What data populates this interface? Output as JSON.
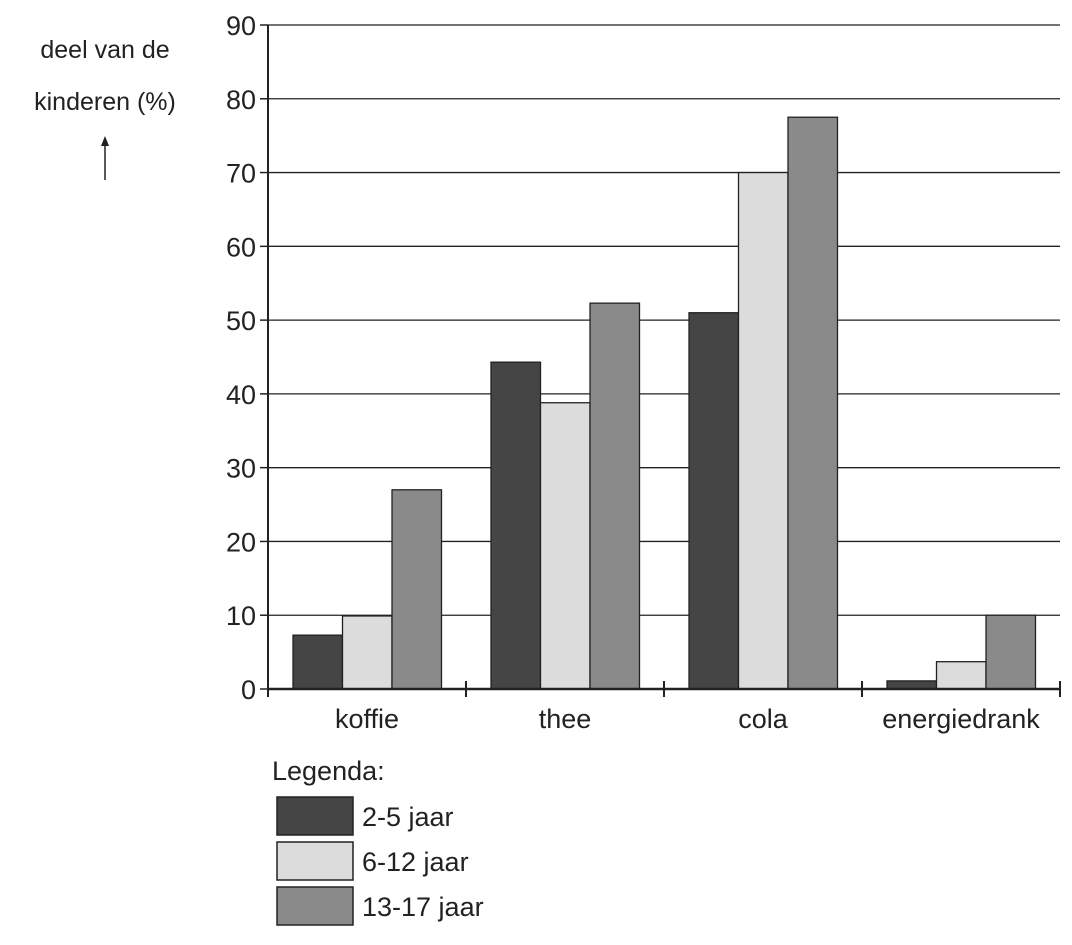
{
  "chart_data": {
    "type": "bar",
    "ylabel_lines": [
      "deel van de",
      "kinderen (%)"
    ],
    "xlabel": "",
    "ylim": [
      0,
      90
    ],
    "yticks": [
      0,
      10,
      20,
      30,
      40,
      50,
      60,
      70,
      80,
      90
    ],
    "grid": true,
    "categories": [
      "koffie",
      "thee",
      "cola",
      "energiedrank"
    ],
    "series": [
      {
        "name": "2-5 jaar",
        "color": "#454545",
        "values": [
          7.3,
          44.3,
          51,
          1.1
        ]
      },
      {
        "name": "6-12 jaar",
        "color": "#dcdcdc",
        "values": [
          9.9,
          38.8,
          70,
          3.7
        ]
      },
      {
        "name": "13-17 jaar",
        "color": "#8a8a8a",
        "values": [
          27,
          52.3,
          77.5,
          10
        ]
      }
    ],
    "legend": {
      "title": "Legenda:",
      "placement": "bottom-left"
    }
  }
}
